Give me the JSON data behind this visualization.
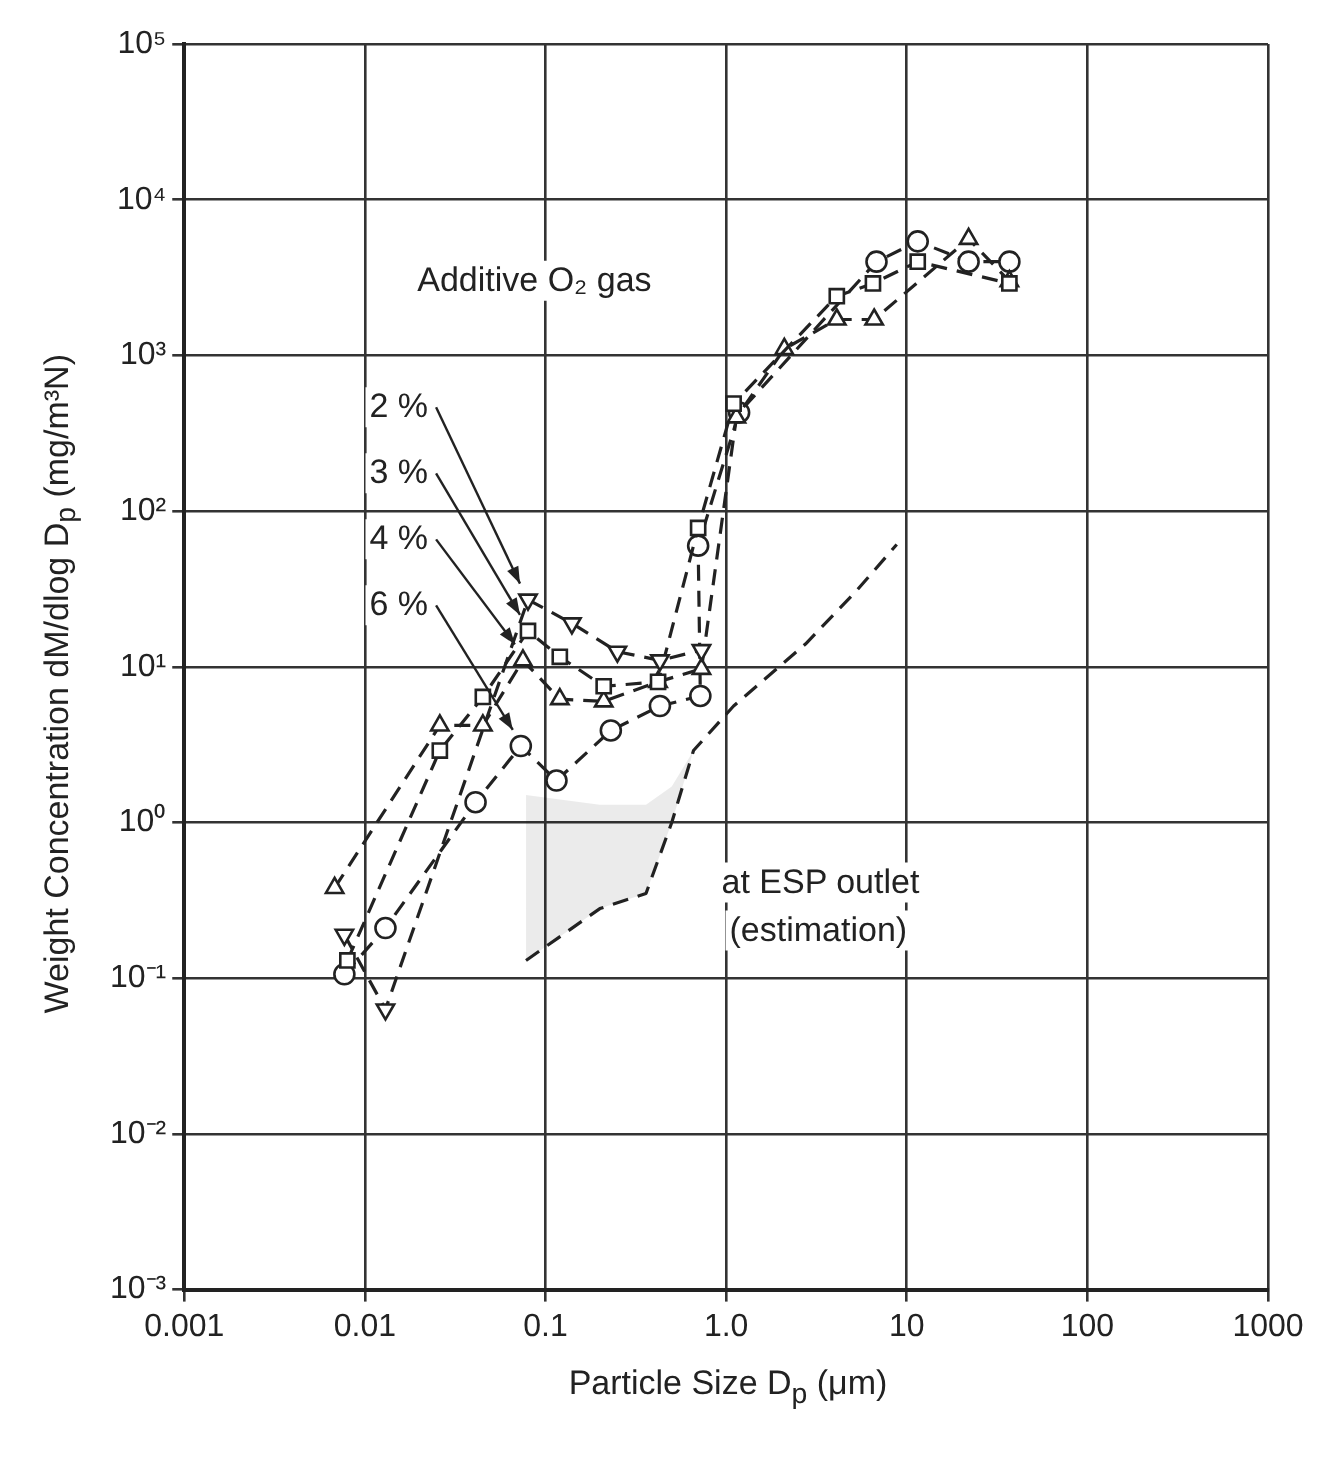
{
  "chart_data": {
    "type": "line",
    "xlabel": "Particle Size D$_{p}$  (μm)",
    "ylabel": "Weight Concentration dM/dlog D$_{p}$  (mg/m³N)",
    "legend_title": "Additive O₂ gas",
    "log": "xy",
    "grid": true,
    "legend": "left",
    "xlim": [
      0.001,
      1000
    ],
    "xticks": [
      0.001,
      0.01,
      0.1,
      {
        "value": 1,
        "label": "1.0"
      },
      10,
      100,
      1000
    ],
    "ylim": [
      0.001,
      100000
    ],
    "yticks": [
      {
        "value": 0.001,
        "label": "10⁻³"
      },
      {
        "value": 0.01,
        "label": "10⁻²"
      },
      {
        "value": 0.1,
        "label": "10⁻¹"
      },
      {
        "value": 1,
        "label": "10⁰"
      },
      {
        "value": 10,
        "label": "10¹"
      },
      {
        "value": 100,
        "label": "10²"
      },
      {
        "value": 1000,
        "label": "10³"
      },
      {
        "value": 10000,
        "label": "10⁴"
      },
      {
        "value": 100000,
        "label": "10⁵"
      }
    ],
    "series": [
      {
        "name": "2 %",
        "color": "#222222",
        "marker": "triangle-down",
        "line_style": "dashed",
        "x": [
          0.0077,
          0.013,
          0.08,
          0.14,
          0.25,
          0.43,
          0.73
        ],
        "values": [
          0.19,
          0.063,
          27,
          19,
          12.5,
          11,
          12.8
        ]
      },
      {
        "name": "3 %",
        "color": "#222222",
        "marker": "square",
        "line_style": "dashed",
        "x": [
          0.008,
          0.026,
          0.045,
          0.08,
          0.12,
          0.21,
          0.42,
          0.7,
          1.1,
          4.1,
          6.5,
          11.5,
          37
        ],
        "values": [
          0.13,
          2.9,
          6.4,
          17,
          11.6,
          7.5,
          8,
          78,
          490,
          2400,
          2900,
          4000,
          2900
        ]
      },
      {
        "name": "4 %",
        "color": "#222222",
        "marker": "triangle",
        "line_style": "dashed",
        "x": [
          0.0068,
          0.026,
          0.045,
          0.075,
          0.12,
          0.21,
          0.42,
          0.73,
          1.14,
          2.1,
          4.1,
          6.6,
          22,
          37
        ],
        "values": [
          0.38,
          4.2,
          4.2,
          11,
          6.2,
          6,
          8,
          9.7,
          400,
          1100,
          1700,
          1700,
          5600,
          3000
        ]
      },
      {
        "name": "6 %",
        "color": "#222222",
        "marker": "circle",
        "line_style": "dashed",
        "x": [
          0.0077,
          0.013,
          0.041,
          0.073,
          0.115,
          0.23,
          0.43,
          0.72,
          0.7,
          1.18,
          6.8,
          11.5,
          22,
          37
        ],
        "values": [
          0.106,
          0.21,
          1.35,
          3.1,
          1.86,
          3.9,
          5.6,
          6.5,
          60,
          430,
          4000,
          5400,
          4000,
          4000
        ]
      },
      {
        "name": "at ESP outlet (estimation)",
        "color": "#222222",
        "marker": "none",
        "line_style": "dashed",
        "x": [
          0.078,
          0.2,
          0.36,
          0.5,
          0.66,
          1.1,
          2.75,
          5.3,
          8.8
        ],
        "values": [
          0.13,
          0.28,
          0.35,
          1.0,
          2.9,
          5.6,
          14,
          31,
          61
        ],
        "lower": [
          0.13,
          0.28,
          0.35,
          1.0,
          2.9,
          null,
          null,
          null,
          null
        ],
        "upper": [
          1.5,
          1.3,
          1.3,
          1.7,
          2.9,
          null,
          null,
          null,
          null
        ]
      }
    ]
  }
}
